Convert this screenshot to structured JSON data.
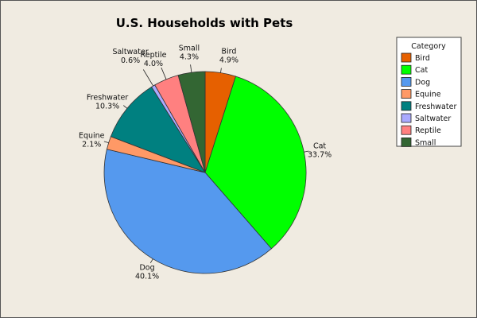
{
  "chart_data": {
    "type": "pie",
    "title": "U.S. Households with Pets",
    "legend_title": "Category",
    "legend_position": "right",
    "categories": [
      "Bird",
      "Cat",
      "Dog",
      "Equine",
      "Freshwater",
      "Saltwater",
      "Reptile",
      "Small"
    ],
    "values": [
      4.9,
      33.7,
      40.1,
      2.1,
      10.3,
      0.6,
      4.0,
      4.3
    ],
    "value_labels": [
      "4.9%",
      "33.7%",
      "40.1%",
      "2.1%",
      "10.3%",
      "0.6%",
      "4.0%",
      "4.3%"
    ],
    "colors": [
      "#e66000",
      "#00ff00",
      "#5599ee",
      "#ff9966",
      "#008080",
      "#aaaaff",
      "#ff8080",
      "#336633"
    ],
    "start_angle_deg": 0,
    "direction": "clockwise"
  }
}
